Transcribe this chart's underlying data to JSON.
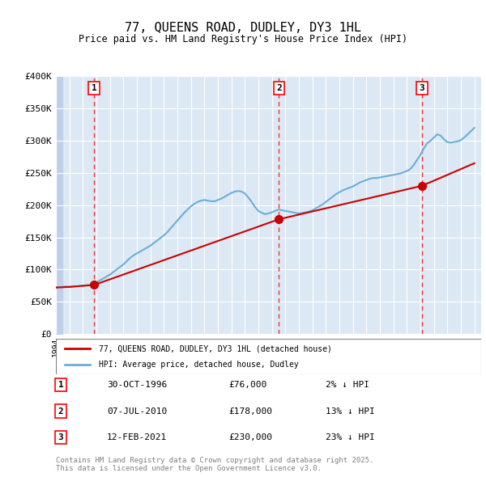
{
  "title": "77, QUEENS ROAD, DUDLEY, DY3 1HL",
  "subtitle": "Price paid vs. HM Land Registry's House Price Index (HPI)",
  "xlabel": "",
  "ylabel": "",
  "ylim": [
    0,
    400000
  ],
  "yticks": [
    0,
    50000,
    100000,
    150000,
    200000,
    250000,
    300000,
    350000,
    400000
  ],
  "ytick_labels": [
    "£0",
    "£50K",
    "£100K",
    "£150K",
    "£200K",
    "£250K",
    "£300K",
    "£350K",
    "£400K"
  ],
  "xlim_start": 1994.0,
  "xlim_end": 2025.5,
  "background_color": "#dce9f5",
  "plot_bg_color": "#dce9f5",
  "hatch_color": "#c0d0e8",
  "grid_color": "#ffffff",
  "price_paid_color": "#cc0000",
  "hpi_color": "#6baed6",
  "sale_dates": [
    1996.83,
    2010.52,
    2021.12
  ],
  "sale_prices": [
    76000,
    178000,
    230000
  ],
  "sale_labels": [
    "1",
    "2",
    "3"
  ],
  "sale_date_strs": [
    "30-OCT-1996",
    "07-JUL-2010",
    "12-FEB-2021"
  ],
  "sale_price_strs": [
    "£76,000",
    "£178,000",
    "£230,000"
  ],
  "sale_pct_strs": [
    "2% ↓ HPI",
    "13% ↓ HPI",
    "23% ↓ HPI"
  ],
  "legend_price_label": "77, QUEENS ROAD, DUDLEY, DY3 1HL (detached house)",
  "legend_hpi_label": "HPI: Average price, detached house, Dudley",
  "footnote": "Contains HM Land Registry data © Crown copyright and database right 2025.\nThis data is licensed under the Open Government Licence v3.0.",
  "hpi_data_x": [
    1994.0,
    1994.25,
    1994.5,
    1994.75,
    1995.0,
    1995.25,
    1995.5,
    1995.75,
    1996.0,
    1996.25,
    1996.5,
    1996.75,
    1997.0,
    1997.25,
    1997.5,
    1997.75,
    1998.0,
    1998.25,
    1998.5,
    1998.75,
    1999.0,
    1999.25,
    1999.5,
    1999.75,
    2000.0,
    2000.25,
    2000.5,
    2000.75,
    2001.0,
    2001.25,
    2001.5,
    2001.75,
    2002.0,
    2002.25,
    2002.5,
    2002.75,
    2003.0,
    2003.25,
    2003.5,
    2003.75,
    2004.0,
    2004.25,
    2004.5,
    2004.75,
    2005.0,
    2005.25,
    2005.5,
    2005.75,
    2006.0,
    2006.25,
    2006.5,
    2006.75,
    2007.0,
    2007.25,
    2007.5,
    2007.75,
    2008.0,
    2008.25,
    2008.5,
    2008.75,
    2009.0,
    2009.25,
    2009.5,
    2009.75,
    2010.0,
    2010.25,
    2010.5,
    2010.75,
    2011.0,
    2011.25,
    2011.5,
    2011.75,
    2012.0,
    2012.25,
    2012.5,
    2012.75,
    2013.0,
    2013.25,
    2013.5,
    2013.75,
    2014.0,
    2014.25,
    2014.5,
    2014.75,
    2015.0,
    2015.25,
    2015.5,
    2015.75,
    2016.0,
    2016.25,
    2016.5,
    2016.75,
    2017.0,
    2017.25,
    2017.5,
    2017.75,
    2018.0,
    2018.25,
    2018.5,
    2018.75,
    2019.0,
    2019.25,
    2019.5,
    2019.75,
    2020.0,
    2020.25,
    2020.5,
    2020.75,
    2021.0,
    2021.25,
    2021.5,
    2021.75,
    2022.0,
    2022.25,
    2022.5,
    2022.75,
    2023.0,
    2023.25,
    2023.5,
    2023.75,
    2024.0,
    2024.25,
    2024.5,
    2024.75,
    2025.0
  ],
  "hpi_data_y": [
    72000,
    72500,
    73000,
    73500,
    73000,
    73500,
    74000,
    74500,
    75000,
    75500,
    76000,
    76500,
    80000,
    83000,
    86000,
    89000,
    92000,
    96000,
    100000,
    104000,
    108000,
    113000,
    118000,
    122000,
    125000,
    128000,
    131000,
    134000,
    137000,
    141000,
    145000,
    149000,
    153000,
    158000,
    164000,
    170000,
    176000,
    182000,
    188000,
    193000,
    198000,
    202000,
    205000,
    207000,
    208000,
    207000,
    206000,
    206000,
    208000,
    210000,
    213000,
    216000,
    219000,
    221000,
    222000,
    221000,
    218000,
    212000,
    205000,
    197000,
    191000,
    188000,
    186000,
    187000,
    189000,
    191000,
    193000,
    192000,
    191000,
    190000,
    189000,
    188000,
    187000,
    188000,
    189000,
    190000,
    192000,
    195000,
    198000,
    201000,
    205000,
    209000,
    213000,
    217000,
    220000,
    223000,
    225000,
    227000,
    229000,
    232000,
    235000,
    237000,
    239000,
    241000,
    242000,
    242000,
    243000,
    244000,
    245000,
    246000,
    247000,
    248000,
    249000,
    251000,
    253000,
    256000,
    262000,
    270000,
    278000,
    288000,
    296000,
    300000,
    305000,
    310000,
    308000,
    302000,
    298000,
    297000,
    298000,
    299000,
    301000,
    305000,
    310000,
    315000,
    320000
  ],
  "price_paid_x": [
    1993.0,
    1994.0,
    1995.0,
    1996.83,
    2010.52,
    2021.12,
    2025.0
  ],
  "price_paid_y": [
    72000,
    72000,
    73000,
    76000,
    178000,
    230000,
    265000
  ]
}
